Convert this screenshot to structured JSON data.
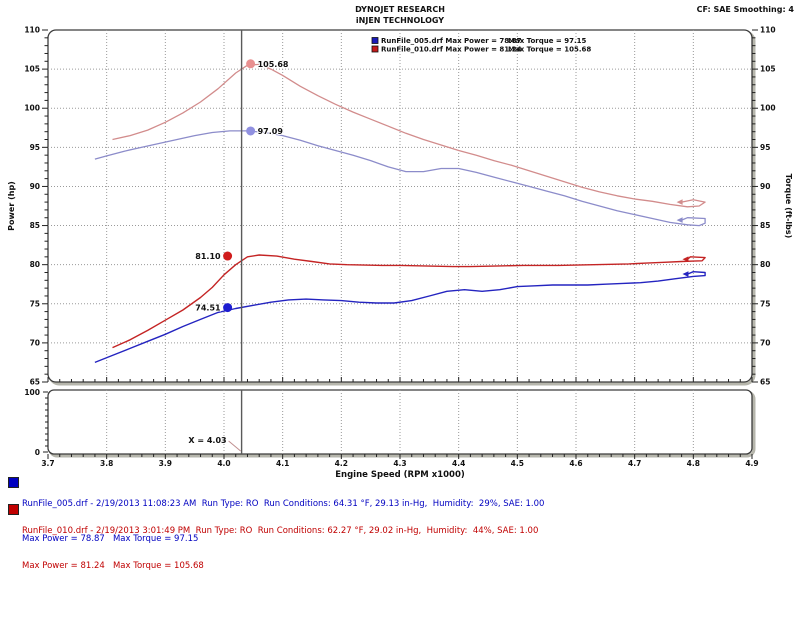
{
  "header": {
    "title_line1": "DYNOJET RESEARCH",
    "title_line2": "iNJEN TECHNOLOGY",
    "cf_smoothing": "CF: SAE  Smoothing: 4"
  },
  "chart_data": {
    "type": "line",
    "title": "",
    "axes": {
      "x": {
        "min": 3.7,
        "max": 4.9,
        "minor_step": 0.02,
        "tick_values": [
          3.7,
          3.8,
          3.9,
          4.0,
          4.1,
          4.2,
          4.3,
          4.4,
          4.5,
          4.6,
          4.7,
          4.8,
          4.9
        ],
        "tick_labels": [
          "3.7",
          "3.8",
          "3.9",
          "4.0",
          "4.1",
          "4.2",
          "4.3",
          "4.4",
          "4.5",
          "4.6",
          "4.7",
          "4.8",
          "4.9"
        ],
        "title": "Engine Speed (RPM x1000)"
      },
      "y_left": {
        "min": 65,
        "max": 110,
        "minor_step": 1,
        "tick_values": [
          65,
          70,
          75,
          80,
          85,
          90,
          95,
          100,
          105,
          110
        ],
        "tick_labels": [
          "65",
          "70",
          "75",
          "80",
          "85",
          "90",
          "95",
          "100",
          "105",
          "110"
        ],
        "title": "Power (hp)"
      },
      "y_right": {
        "title": "Torque (ft-lbs)"
      },
      "sub_panel": {
        "min": 0,
        "max": 100,
        "top_label": "100",
        "bottom_label": "0"
      }
    },
    "grid": {
      "style": "dotted",
      "color": "#9a9a9a"
    },
    "cursor": {
      "x": 4.03,
      "label": "X = 4.03"
    },
    "legend_rows": [
      {
        "color": "#1a1ab8",
        "text_left": "RunFile_005.drf Max Power = 78.87",
        "text_right": "Max Torque = 97.15"
      },
      {
        "color": "#c41a1a",
        "text_left": "RunFile_010.drf Max Power = 81.24",
        "text_right": "Max Torque = 105.68"
      }
    ],
    "series": [
      {
        "id": "torque_010",
        "name": "RunFile_010 Torque",
        "color": "#d28c8c",
        "width": 1.3,
        "points": [
          [
            3.81,
            96.0
          ],
          [
            3.84,
            96.5
          ],
          [
            3.87,
            97.2
          ],
          [
            3.9,
            98.2
          ],
          [
            3.93,
            99.4
          ],
          [
            3.96,
            100.8
          ],
          [
            3.99,
            102.5
          ],
          [
            4.02,
            104.5
          ],
          [
            4.04,
            105.5
          ],
          [
            4.06,
            105.6
          ],
          [
            4.08,
            105.0
          ],
          [
            4.1,
            104.2
          ],
          [
            4.13,
            102.8
          ],
          [
            4.16,
            101.6
          ],
          [
            4.19,
            100.5
          ],
          [
            4.22,
            99.5
          ],
          [
            4.25,
            98.6
          ],
          [
            4.28,
            97.7
          ],
          [
            4.31,
            96.8
          ],
          [
            4.34,
            96.0
          ],
          [
            4.37,
            95.3
          ],
          [
            4.4,
            94.6
          ],
          [
            4.43,
            94.0
          ],
          [
            4.46,
            93.3
          ],
          [
            4.49,
            92.7
          ],
          [
            4.52,
            92.0
          ],
          [
            4.55,
            91.3
          ],
          [
            4.58,
            90.6
          ],
          [
            4.61,
            89.9
          ],
          [
            4.64,
            89.3
          ],
          [
            4.67,
            88.8
          ],
          [
            4.7,
            88.4
          ],
          [
            4.73,
            88.1
          ],
          [
            4.76,
            87.7
          ],
          [
            4.79,
            87.4
          ],
          [
            4.81,
            87.5
          ],
          [
            4.82,
            88.0
          ],
          [
            4.8,
            88.3
          ],
          [
            4.78,
            88.0
          ]
        ]
      },
      {
        "id": "torque_005",
        "name": "RunFile_005 Torque",
        "color": "#8c8cca",
        "width": 1.3,
        "points": [
          [
            3.78,
            93.5
          ],
          [
            3.8,
            93.9
          ],
          [
            3.83,
            94.5
          ],
          [
            3.86,
            95.0
          ],
          [
            3.89,
            95.5
          ],
          [
            3.92,
            96.0
          ],
          [
            3.95,
            96.5
          ],
          [
            3.98,
            96.9
          ],
          [
            4.01,
            97.1
          ],
          [
            4.04,
            97.1
          ],
          [
            4.07,
            96.9
          ],
          [
            4.1,
            96.5
          ],
          [
            4.13,
            95.9
          ],
          [
            4.16,
            95.2
          ],
          [
            4.19,
            94.6
          ],
          [
            4.22,
            94.0
          ],
          [
            4.25,
            93.3
          ],
          [
            4.28,
            92.5
          ],
          [
            4.31,
            91.9
          ],
          [
            4.34,
            91.9
          ],
          [
            4.37,
            92.3
          ],
          [
            4.4,
            92.3
          ],
          [
            4.43,
            91.8
          ],
          [
            4.46,
            91.2
          ],
          [
            4.49,
            90.6
          ],
          [
            4.52,
            90.0
          ],
          [
            4.55,
            89.4
          ],
          [
            4.58,
            88.8
          ],
          [
            4.61,
            88.1
          ],
          [
            4.64,
            87.5
          ],
          [
            4.67,
            86.9
          ],
          [
            4.7,
            86.4
          ],
          [
            4.73,
            85.9
          ],
          [
            4.76,
            85.4
          ],
          [
            4.79,
            85.1
          ],
          [
            4.81,
            85.0
          ],
          [
            4.82,
            85.3
          ],
          [
            4.82,
            85.9
          ],
          [
            4.79,
            86.0
          ],
          [
            4.78,
            85.7
          ]
        ]
      },
      {
        "id": "power_010",
        "name": "RunFile_010 Power",
        "color": "#c42424",
        "width": 1.4,
        "points": [
          [
            3.81,
            69.4
          ],
          [
            3.84,
            70.4
          ],
          [
            3.87,
            71.6
          ],
          [
            3.9,
            72.9
          ],
          [
            3.93,
            74.2
          ],
          [
            3.96,
            75.8
          ],
          [
            3.98,
            77.1
          ],
          [
            4.0,
            78.7
          ],
          [
            4.02,
            80.0
          ],
          [
            4.04,
            81.0
          ],
          [
            4.06,
            81.24
          ],
          [
            4.09,
            81.1
          ],
          [
            4.12,
            80.7
          ],
          [
            4.15,
            80.4
          ],
          [
            4.18,
            80.1
          ],
          [
            4.21,
            80.0
          ],
          [
            4.24,
            79.95
          ],
          [
            4.27,
            79.9
          ],
          [
            4.3,
            79.9
          ],
          [
            4.33,
            79.85
          ],
          [
            4.36,
            79.8
          ],
          [
            4.39,
            79.75
          ],
          [
            4.42,
            79.75
          ],
          [
            4.45,
            79.8
          ],
          [
            4.48,
            79.85
          ],
          [
            4.51,
            79.9
          ],
          [
            4.54,
            79.9
          ],
          [
            4.57,
            79.9
          ],
          [
            4.6,
            79.95
          ],
          [
            4.63,
            80.0
          ],
          [
            4.66,
            80.05
          ],
          [
            4.69,
            80.1
          ],
          [
            4.72,
            80.2
          ],
          [
            4.75,
            80.3
          ],
          [
            4.78,
            80.4
          ],
          [
            4.8,
            80.45
          ],
          [
            4.815,
            80.5
          ],
          [
            4.82,
            80.9
          ],
          [
            4.795,
            81.0
          ],
          [
            4.79,
            80.7
          ]
        ]
      },
      {
        "id": "power_005",
        "name": "RunFile_005 Power",
        "color": "#2424c0",
        "width": 1.4,
        "points": [
          [
            3.78,
            67.5
          ],
          [
            3.81,
            68.4
          ],
          [
            3.84,
            69.3
          ],
          [
            3.87,
            70.2
          ],
          [
            3.9,
            71.1
          ],
          [
            3.93,
            72.1
          ],
          [
            3.96,
            73.0
          ],
          [
            3.99,
            73.9
          ],
          [
            4.02,
            74.4
          ],
          [
            4.05,
            74.8
          ],
          [
            4.08,
            75.2
          ],
          [
            4.11,
            75.5
          ],
          [
            4.14,
            75.6
          ],
          [
            4.17,
            75.5
          ],
          [
            4.2,
            75.4
          ],
          [
            4.23,
            75.2
          ],
          [
            4.26,
            75.1
          ],
          [
            4.29,
            75.1
          ],
          [
            4.32,
            75.4
          ],
          [
            4.35,
            76.0
          ],
          [
            4.38,
            76.6
          ],
          [
            4.41,
            76.8
          ],
          [
            4.44,
            76.6
          ],
          [
            4.47,
            76.8
          ],
          [
            4.5,
            77.2
          ],
          [
            4.53,
            77.3
          ],
          [
            4.56,
            77.4
          ],
          [
            4.59,
            77.4
          ],
          [
            4.62,
            77.4
          ],
          [
            4.65,
            77.5
          ],
          [
            4.68,
            77.6
          ],
          [
            4.71,
            77.7
          ],
          [
            4.74,
            77.9
          ],
          [
            4.77,
            78.2
          ],
          [
            4.8,
            78.5
          ],
          [
            4.82,
            78.6
          ],
          [
            4.82,
            79.0
          ],
          [
            4.8,
            79.1
          ],
          [
            4.79,
            78.8
          ]
        ]
      }
    ],
    "cursor_markers": [
      {
        "series": "torque_010",
        "value": 105.68,
        "label": "105.68",
        "color": "#e89090",
        "side": "right"
      },
      {
        "series": "torque_005",
        "value": 97.09,
        "label": "97.09",
        "color": "#9090e0",
        "side": "right"
      },
      {
        "series": "power_010",
        "value": 81.1,
        "label": "81.10",
        "color": "#d01c1c",
        "side": "left"
      },
      {
        "series": "power_005",
        "value": 74.51,
        "label": "74.51",
        "color": "#1c1cd0",
        "side": "left"
      }
    ]
  },
  "run_info": [
    {
      "color": "#0000c0",
      "line1": "RunFile_005.drf - 2/19/2013 11:08:23 AM  Run Type: RO  Run Conditions: 64.31 °F, 29.13 in-Hg,  Humidity:  29%, SAE: 1.00",
      "line2": "Max Power = 78.87   Max Torque = 97.15"
    },
    {
      "color": "#c00000",
      "line1": "RunFile_010.drf - 2/19/2013 3:01:49 PM  Run Type: RO  Run Conditions: 62.27 °F, 29.02 in-Hg,  Humidity:  44%, SAE: 1.00",
      "line2": "Max Power = 81.24   Max Torque = 105.68"
    }
  ]
}
